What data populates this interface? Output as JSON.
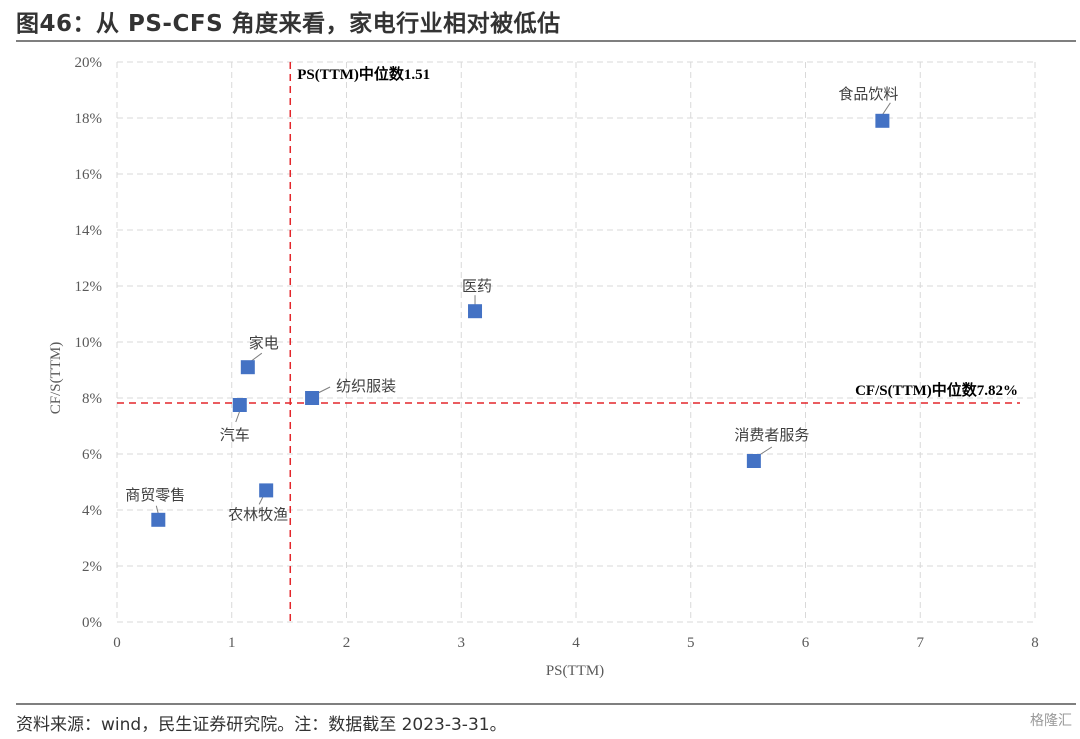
{
  "header": {
    "title": "图46：从 PS-CFS 角度来看，家电行业相对被低估"
  },
  "footer": {
    "source": "资料来源：wind，民生证券研究院。注：数据截至 2023-3-31。",
    "logo_text": "格隆汇"
  },
  "chart_data": {
    "type": "scatter",
    "title": "",
    "xlabel": "PS(TTM)",
    "ylabel": "CF/S(TTM)",
    "xlim": [
      0,
      8
    ],
    "ylim": [
      0,
      20
    ],
    "x_ticks": [
      "0",
      "1",
      "2",
      "3",
      "4",
      "5",
      "6",
      "7",
      "8"
    ],
    "y_ticks": [
      "0%",
      "2%",
      "4%",
      "6%",
      "8%",
      "10%",
      "12%",
      "14%",
      "16%",
      "18%",
      "20%"
    ],
    "grid": "dashed",
    "marker_color": "#4472c4",
    "reference_color": "#e3262b",
    "points": [
      {
        "label": "食品饮料",
        "x": 6.67,
        "y": 17.9
      },
      {
        "label": "医药",
        "x": 3.12,
        "y": 11.1
      },
      {
        "label": "家电",
        "x": 1.14,
        "y": 9.1
      },
      {
        "label": "纺织服装",
        "x": 1.7,
        "y": 8.0
      },
      {
        "label": "汽车",
        "x": 1.07,
        "y": 7.75
      },
      {
        "label": "消费者服务",
        "x": 5.55,
        "y": 5.75
      },
      {
        "label": "商贸零售",
        "x": 0.36,
        "y": 3.65
      },
      {
        "label": "农林牧渔",
        "x": 1.3,
        "y": 4.7
      }
    ],
    "reference_lines": [
      {
        "axis": "x",
        "value": 1.51,
        "label": "PS(TTM)中位数1.51"
      },
      {
        "axis": "y",
        "value": 7.82,
        "label": "CF/S(TTM)中位数7.82%"
      }
    ]
  }
}
